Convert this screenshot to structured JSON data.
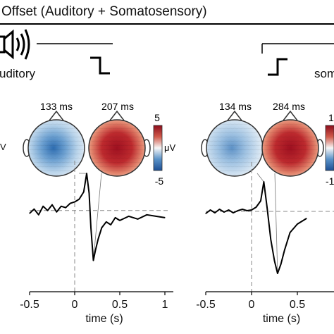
{
  "header": {
    "title": "Offset (Auditory + Somatosensory)"
  },
  "panels": [
    {
      "modality_label": "uditory",
      "latencies": [
        "133 ms",
        "207 ms"
      ],
      "colorbar": {
        "max": "5",
        "unit": "μV",
        "min": "-5"
      },
      "side_label": "V"
    },
    {
      "modality_label": "som",
      "latencies": [
        "134 ms",
        "284 ms"
      ],
      "colorbar": {
        "max": "1",
        "unit": "μV",
        "min": "-1"
      }
    }
  ],
  "colors": {
    "negative": "#2f6fb0",
    "positive": "#b01c25",
    "trace": "#000000"
  },
  "chart_data": [
    {
      "type": "line",
      "xlabel": "time (s)",
      "xlim": [
        -0.5,
        1
      ],
      "xticks": [
        -0.5,
        0,
        0.5,
        1
      ],
      "xtick_labels": [
        "-0.5",
        "0",
        "0.5",
        "1"
      ],
      "ylim": [
        -5,
        3
      ],
      "series": [
        {
          "x": [
            -0.5,
            -0.45,
            -0.4,
            -0.35,
            -0.3,
            -0.25,
            -0.2,
            -0.15,
            -0.1,
            -0.05,
            0,
            0.05,
            0.1,
            0.133,
            0.16,
            0.18,
            0.207,
            0.23,
            0.26,
            0.3,
            0.35,
            0.4,
            0.45,
            0.5,
            0.6,
            0.7,
            0.8,
            0.9,
            1
          ],
          "y": [
            -0.2,
            0.1,
            -0.3,
            0.3,
            0,
            0.4,
            -0.1,
            0.3,
            0.2,
            0.5,
            0.6,
            0.8,
            1.3,
            2.6,
            1.2,
            -1.2,
            -3.5,
            -2.8,
            -2,
            -1.2,
            -0.8,
            -1,
            -0.5,
            -0.7,
            -0.4,
            -0.6,
            -0.3,
            -0.4,
            -0.5
          ]
        }
      ],
      "annotations": [
        {
          "x": 0.133,
          "label": "133 ms"
        },
        {
          "x": 0.207,
          "label": "207 ms"
        }
      ]
    },
    {
      "type": "line",
      "xlabel": "time (s)",
      "xlim": [
        -0.5,
        1
      ],
      "xticks": [
        -0.5,
        0,
        0.5
      ],
      "xtick_labels": [
        "-0.5",
        "0",
        "0.5"
      ],
      "ylim": [
        -10,
        6
      ],
      "series": [
        {
          "x": [
            -0.5,
            -0.45,
            -0.4,
            -0.35,
            -0.3,
            -0.25,
            -0.2,
            -0.15,
            -0.1,
            -0.05,
            0,
            0.05,
            0.1,
            0.134,
            0.17,
            0.21,
            0.25,
            0.284,
            0.32,
            0.36,
            0.42,
            0.5,
            0.55,
            0.6
          ],
          "y": [
            -0.3,
            0.2,
            -0.2,
            0.3,
            -0.1,
            0.2,
            -0.2,
            0.1,
            0.3,
            0.1,
            0.2,
            0.6,
            1.5,
            4.2,
            0.5,
            -4,
            -7,
            -8.8,
            -7.5,
            -5.5,
            -3,
            -1.8,
            -1.4,
            -1
          ]
        }
      ],
      "annotations": [
        {
          "x": 0.134,
          "label": "134 ms"
        },
        {
          "x": 0.284,
          "label": "284 ms"
        }
      ]
    }
  ]
}
